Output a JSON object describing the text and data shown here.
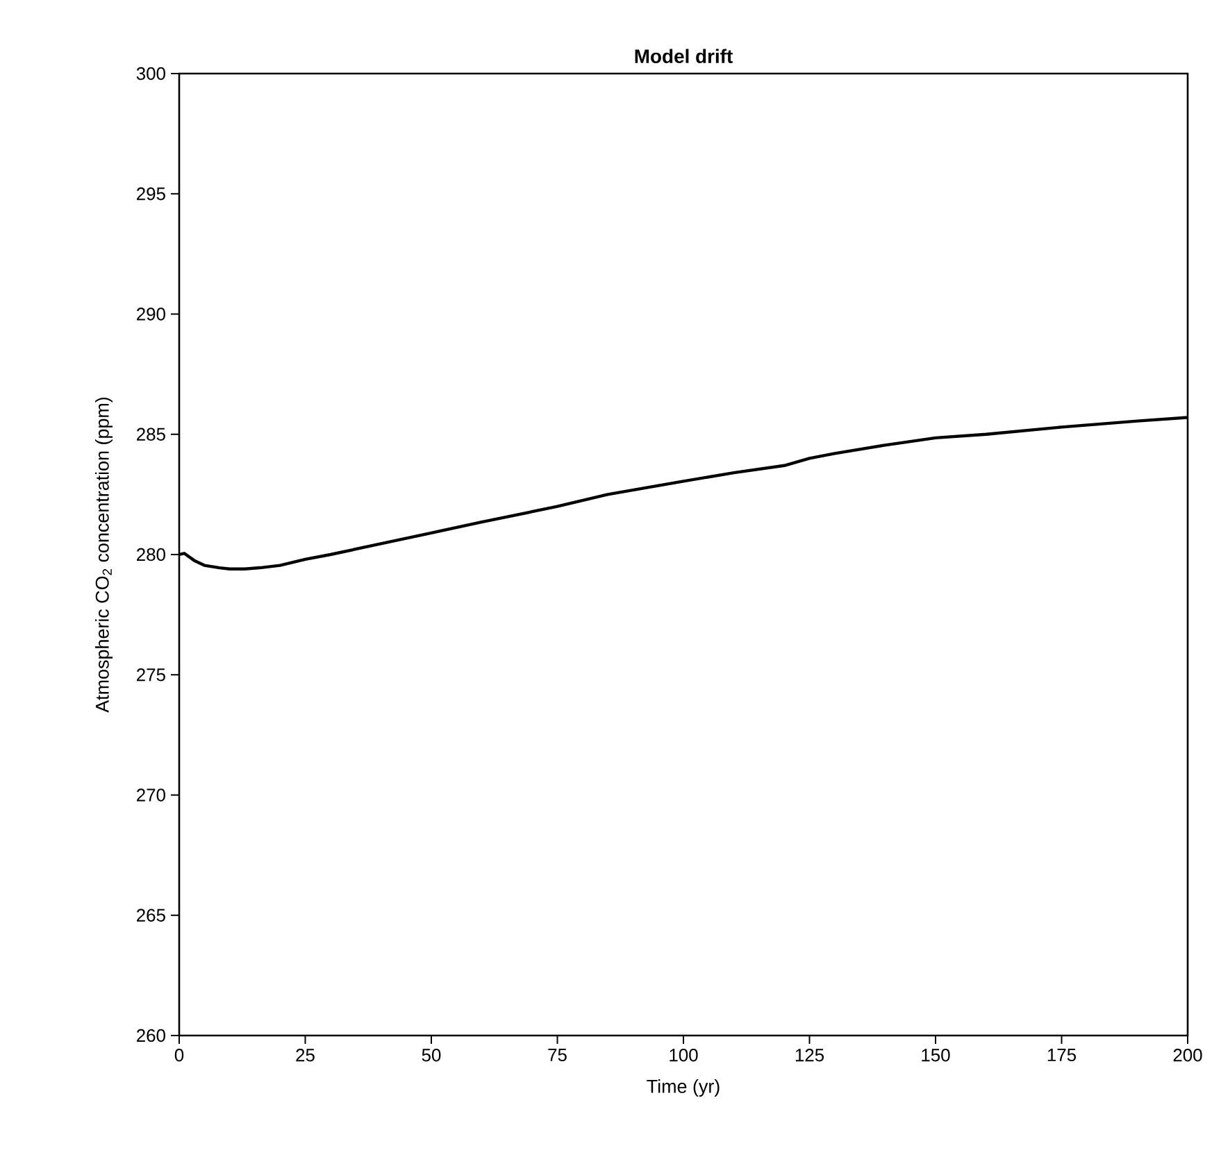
{
  "chart_data": {
    "type": "line",
    "title": "Model drift",
    "xlabel": "Time (yr)",
    "ylabel": "Atmospheric CO$_{2}$ concentration (ppm)",
    "x": [
      0,
      1,
      3,
      5,
      8,
      10,
      13,
      16,
      20,
      25,
      30,
      40,
      50,
      60,
      75,
      85,
      100,
      110,
      120,
      125,
      130,
      140,
      145,
      150,
      160,
      175,
      190,
      200
    ],
    "series": [
      {
        "color": "#000000",
        "values": [
          280.0,
          280.05,
          279.75,
          279.55,
          279.45,
          279.4,
          279.4,
          279.45,
          279.55,
          279.8,
          280.0,
          280.45,
          280.9,
          281.35,
          282.0,
          282.5,
          283.05,
          283.4,
          283.7,
          284.0,
          284.2,
          284.55,
          284.7,
          284.85,
          285.0,
          285.3,
          285.55,
          285.7
        ]
      }
    ],
    "xlim": [
      0,
      200
    ],
    "ylim": [
      260,
      300
    ],
    "xticks": [
      0,
      25,
      50,
      75,
      100,
      125,
      150,
      175,
      200
    ],
    "yticks": [
      260,
      265,
      270,
      275,
      280,
      285,
      290,
      295,
      300
    ],
    "grid": false,
    "marker": "none",
    "line_style": "solid"
  }
}
